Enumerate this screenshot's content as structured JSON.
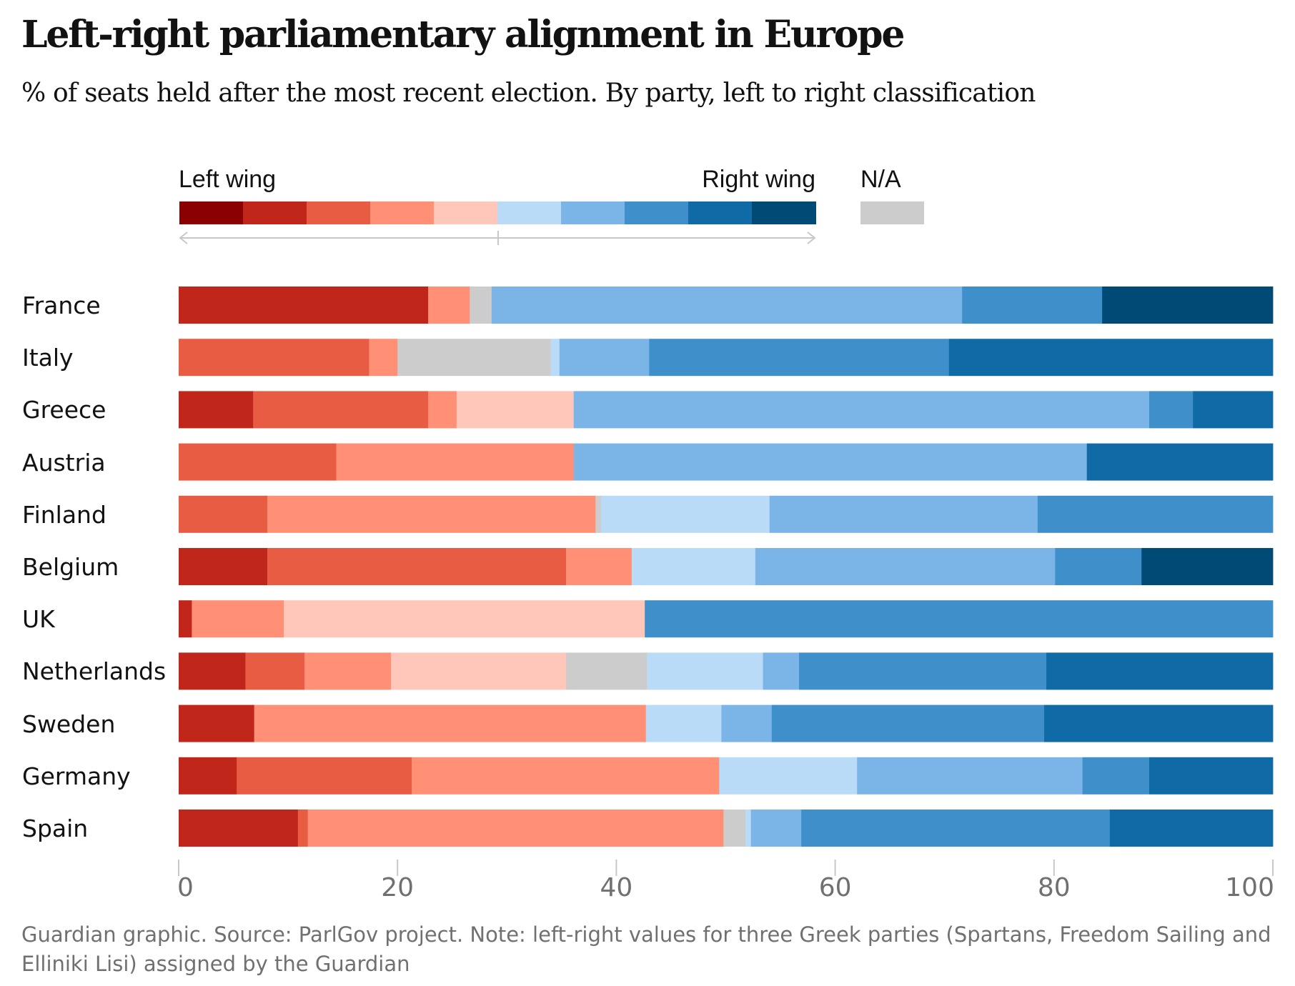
{
  "chart_data": {
    "type": "bar",
    "orientation": "horizontal-stacked-100",
    "title": "Left-right parliamentary alignment in Europe",
    "subtitle": "% of seats held after the most recent election. By party, left to right classification",
    "xlabel": "",
    "ylabel": "",
    "xlim": [
      0,
      100
    ],
    "x_ticks": [
      0,
      20,
      40,
      60,
      80,
      100
    ],
    "x_tick_labels": [
      "0",
      "20",
      "40",
      "60",
      "80",
      "100"
    ],
    "legend": {
      "left_label": "Left wing",
      "right_label": "Right wing",
      "na_label": "N/A",
      "placement": "top",
      "scale_colors": [
        "#8b0000",
        "#c0271a",
        "#e85c44",
        "#ff8f75",
        "#ffc7b9",
        "#b9dbf7",
        "#7bb5e8",
        "#3f8fca",
        "#106aa6",
        "#004a76"
      ],
      "na_color": "#cccccc"
    },
    "categories": [
      "France",
      "Italy",
      "Greece",
      "Austria",
      "Finland",
      "Belgium",
      "UK",
      "Netherlands",
      "Sweden",
      "Germany",
      "Spain"
    ],
    "series_note": "Each country lists stacked segments in order; 'cls' is the left-right class (1 = far left … 10 = far right, 'na' = unclassified); 'pct' is % of seats.",
    "rows": [
      {
        "country": "France",
        "segments": [
          {
            "cls": 2,
            "pct": 22.8
          },
          {
            "cls": 4,
            "pct": 3.8
          },
          {
            "cls": "na",
            "pct": 2.0
          },
          {
            "cls": 7,
            "pct": 43.0
          },
          {
            "cls": 8,
            "pct": 12.8
          },
          {
            "cls": 10,
            "pct": 15.6
          }
        ]
      },
      {
        "country": "Italy",
        "segments": [
          {
            "cls": 3,
            "pct": 17.4
          },
          {
            "cls": 4,
            "pct": 2.6
          },
          {
            "cls": "na",
            "pct": 14.0
          },
          {
            "cls": 6,
            "pct": 0.8
          },
          {
            "cls": 7,
            "pct": 8.2
          },
          {
            "cls": 8,
            "pct": 27.4
          },
          {
            "cls": 9,
            "pct": 29.6
          }
        ]
      },
      {
        "country": "Greece",
        "segments": [
          {
            "cls": 2,
            "pct": 6.8
          },
          {
            "cls": 3,
            "pct": 16.0
          },
          {
            "cls": 4,
            "pct": 2.6
          },
          {
            "cls": 5,
            "pct": 10.7
          },
          {
            "cls": 7,
            "pct": 52.6
          },
          {
            "cls": 8,
            "pct": 4.0
          },
          {
            "cls": 9,
            "pct": 7.3
          }
        ]
      },
      {
        "country": "Austria",
        "segments": [
          {
            "cls": 3,
            "pct": 14.4
          },
          {
            "cls": 4,
            "pct": 21.7
          },
          {
            "cls": 7,
            "pct": 46.9
          },
          {
            "cls": 9,
            "pct": 17.0
          }
        ]
      },
      {
        "country": "Finland",
        "segments": [
          {
            "cls": 3,
            "pct": 8.1
          },
          {
            "cls": 4,
            "pct": 30.0
          },
          {
            "cls": "na",
            "pct": 0.5
          },
          {
            "cls": 6,
            "pct": 15.4
          },
          {
            "cls": 7,
            "pct": 24.5
          },
          {
            "cls": 8,
            "pct": 21.5
          }
        ]
      },
      {
        "country": "Belgium",
        "segments": [
          {
            "cls": 2,
            "pct": 8.1
          },
          {
            "cls": 3,
            "pct": 27.3
          },
          {
            "cls": 4,
            "pct": 6.0
          },
          {
            "cls": 6,
            "pct": 11.3
          },
          {
            "cls": 7,
            "pct": 27.4
          },
          {
            "cls": 8,
            "pct": 7.9
          },
          {
            "cls": 10,
            "pct": 12.0
          }
        ]
      },
      {
        "country": "UK",
        "segments": [
          {
            "cls": 2,
            "pct": 1.2
          },
          {
            "cls": 4,
            "pct": 8.4
          },
          {
            "cls": 5,
            "pct": 33.0
          },
          {
            "cls": 8,
            "pct": 57.4
          }
        ]
      },
      {
        "country": "Netherlands",
        "segments": [
          {
            "cls": 2,
            "pct": 6.1
          },
          {
            "cls": 3,
            "pct": 5.4
          },
          {
            "cls": 4,
            "pct": 7.9
          },
          {
            "cls": 5,
            "pct": 16.0
          },
          {
            "cls": "na",
            "pct": 7.4
          },
          {
            "cls": 6,
            "pct": 10.6
          },
          {
            "cls": 7,
            "pct": 3.3
          },
          {
            "cls": 8,
            "pct": 22.6
          },
          {
            "cls": 9,
            "pct": 20.7
          }
        ]
      },
      {
        "country": "Sweden",
        "segments": [
          {
            "cls": 2,
            "pct": 6.9
          },
          {
            "cls": 4,
            "pct": 35.8
          },
          {
            "cls": 6,
            "pct": 6.9
          },
          {
            "cls": 7,
            "pct": 4.6
          },
          {
            "cls": 8,
            "pct": 24.9
          },
          {
            "cls": 9,
            "pct": 20.9
          }
        ]
      },
      {
        "country": "Germany",
        "segments": [
          {
            "cls": 2,
            "pct": 5.3
          },
          {
            "cls": 3,
            "pct": 16.0
          },
          {
            "cls": 4,
            "pct": 28.1
          },
          {
            "cls": 6,
            "pct": 12.6
          },
          {
            "cls": 7,
            "pct": 20.6
          },
          {
            "cls": 8,
            "pct": 6.1
          },
          {
            "cls": 9,
            "pct": 11.3
          }
        ]
      },
      {
        "country": "Spain",
        "segments": [
          {
            "cls": 2,
            "pct": 10.9
          },
          {
            "cls": 3,
            "pct": 0.9
          },
          {
            "cls": 4,
            "pct": 38.0
          },
          {
            "cls": "na",
            "pct": 2.0
          },
          {
            "cls": 6,
            "pct": 0.5
          },
          {
            "cls": 7,
            "pct": 4.6
          },
          {
            "cls": 8,
            "pct": 28.2
          },
          {
            "cls": 9,
            "pct": 14.9
          }
        ]
      }
    ],
    "grid": false,
    "footnote": "Guardian graphic. Source: ParlGov project. Note: left-right values for three Greek parties (Spartans, Freedom Sailing and Elliniki Lisi) assigned by the Guardian"
  }
}
